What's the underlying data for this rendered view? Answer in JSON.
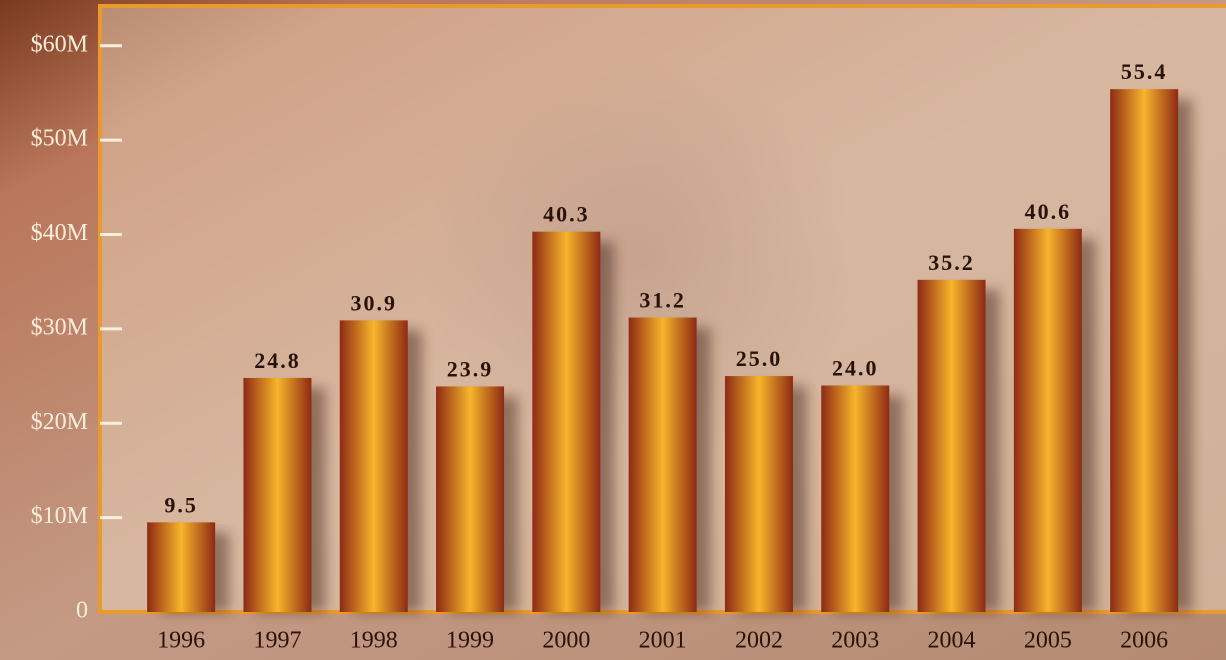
{
  "chart_data": {
    "type": "bar",
    "categories": [
      "1996",
      "1997",
      "1998",
      "1999",
      "2000",
      "2001",
      "2002",
      "2003",
      "2004",
      "2005",
      "2006"
    ],
    "values": [
      9.5,
      24.8,
      30.9,
      23.9,
      40.3,
      31.2,
      25.0,
      24.0,
      35.2,
      40.6,
      55.4
    ],
    "value_labels": [
      "9.5",
      "24.8",
      "30.9",
      "23.9",
      "40.3",
      "31.2",
      "25.0",
      "24.0",
      "35.2",
      "40.6",
      "55.4"
    ],
    "color": "#f7b52a",
    "ylim": [
      0,
      64
    ],
    "yticks": [
      0,
      {
        "value": 10,
        "label": "$10M"
      },
      {
        "value": 20,
        "label": "$20M"
      },
      {
        "value": 30,
        "label": "$30M"
      },
      {
        "value": 40,
        "label": "$40M"
      },
      {
        "value": 50,
        "label": "$50M"
      },
      {
        "value": 60,
        "label": "$60M"
      }
    ]
  }
}
